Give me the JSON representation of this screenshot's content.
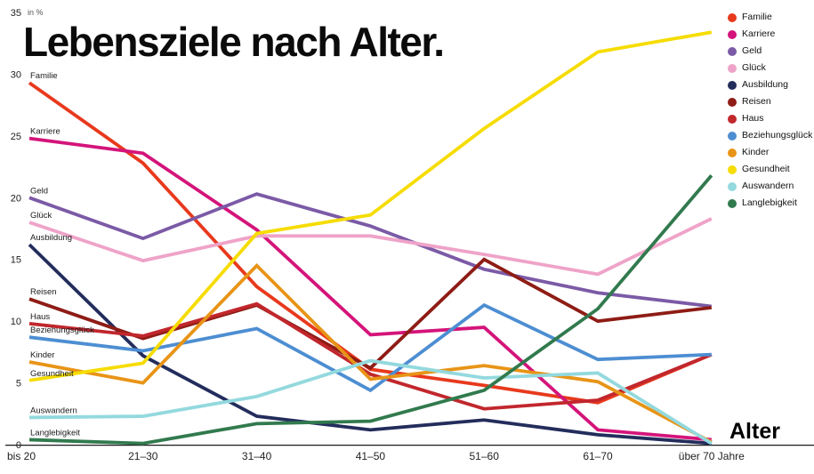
{
  "title": "Lebensziele nach Alter.",
  "chart_data": {
    "type": "line",
    "title": "Lebensziele nach Alter.",
    "x_label": "Alter",
    "y_unit": "in %",
    "y_ticks": [
      0,
      5,
      10,
      15,
      20,
      25,
      30,
      35
    ],
    "ylim": [
      0,
      35
    ],
    "grid": false,
    "legend_position": "top-right",
    "categories": [
      "bis 20",
      "21–30",
      "31–40",
      "41–50",
      "51–60",
      "61–70",
      "über 70 Jahre"
    ],
    "series": [
      {
        "name": "Familie",
        "color": "#e8391d",
        "values": [
          29.3,
          22.8,
          12.8,
          6.1,
          4.8,
          3.4,
          7.3
        ]
      },
      {
        "name": "Karriere",
        "color": "#d4147a",
        "values": [
          24.8,
          23.6,
          17.4,
          8.9,
          9.5,
          1.2,
          0.4
        ]
      },
      {
        "name": "Geld",
        "color": "#7b5aa6",
        "values": [
          20.0,
          16.7,
          20.3,
          17.7,
          14.2,
          12.3,
          11.2
        ]
      },
      {
        "name": "Glück",
        "color": "#efa3c8",
        "values": [
          18.0,
          14.9,
          16.9,
          16.9,
          15.4,
          13.8,
          18.3
        ]
      },
      {
        "name": "Ausbildung",
        "color": "#232d5c",
        "values": [
          16.2,
          7.2,
          2.3,
          1.2,
          2.0,
          0.8,
          0.1
        ]
      },
      {
        "name": "Reisen",
        "color": "#8e1c15",
        "values": [
          11.8,
          8.6,
          11.3,
          6.2,
          15.0,
          10.0,
          11.1
        ]
      },
      {
        "name": "Haus",
        "color": "#c1272d",
        "values": [
          9.8,
          8.8,
          11.4,
          5.7,
          2.9,
          3.6,
          7.3
        ]
      },
      {
        "name": "Beziehungsglück",
        "color": "#4d8ed2",
        "values": [
          8.7,
          7.6,
          9.4,
          4.4,
          11.3,
          6.9,
          7.3
        ]
      },
      {
        "name": "Kinder",
        "color": "#e89417",
        "values": [
          6.7,
          5.0,
          14.5,
          5.3,
          6.4,
          5.1,
          0.2
        ]
      },
      {
        "name": "Gesundheit",
        "color": "#f6dc02",
        "values": [
          5.2,
          6.6,
          17.1,
          18.6,
          25.6,
          31.8,
          33.4
        ]
      },
      {
        "name": "Auswandern",
        "color": "#93d9de",
        "values": [
          2.2,
          2.3,
          3.9,
          6.8,
          5.4,
          5.8,
          0.1
        ]
      },
      {
        "name": "Langlebigkeit",
        "color": "#317a4e",
        "values": [
          0.4,
          0.1,
          1.7,
          1.9,
          4.4,
          11.0,
          21.8
        ]
      }
    ]
  }
}
